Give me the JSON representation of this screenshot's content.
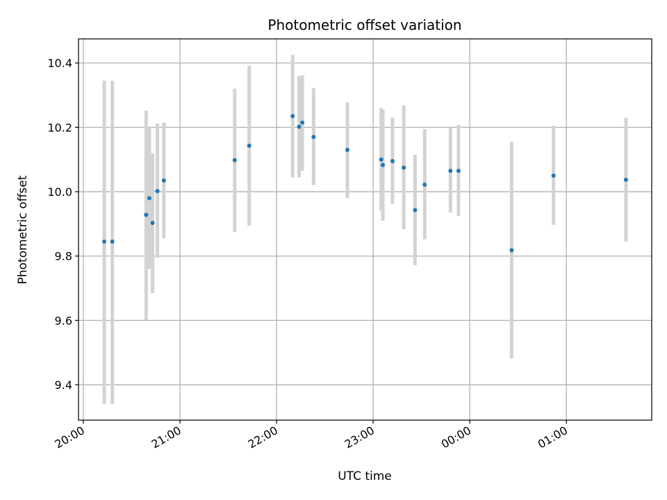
{
  "chart_data": {
    "type": "scatter",
    "title": "Photometric offset variation",
    "xlabel": "UTC time",
    "ylabel": "Photometric offset",
    "xlim": [
      "19:57",
      "01:53"
    ],
    "ylim": [
      9.29,
      10.475
    ],
    "x_ticks": [
      "20:00",
      "21:00",
      "22:00",
      "23:00",
      "00:00",
      "01:00"
    ],
    "y_ticks": [
      9.4,
      9.6,
      9.8,
      10.0,
      10.2,
      10.4
    ],
    "grid": true,
    "colors": {
      "point": "#1f77b4",
      "errorbar": "#d3d3d3",
      "grid": "#b0b0b0"
    },
    "points": [
      {
        "x": "20:13",
        "y": 9.845,
        "low": 9.34,
        "high": 10.345
      },
      {
        "x": "20:18",
        "y": 9.845,
        "low": 9.34,
        "high": 10.345
      },
      {
        "x": "20:39",
        "y": 9.928,
        "low": 9.6,
        "high": 10.252
      },
      {
        "x": "20:41",
        "y": 9.98,
        "low": 9.76,
        "high": 10.2
      },
      {
        "x": "20:43",
        "y": 9.903,
        "low": 9.685,
        "high": 10.12
      },
      {
        "x": "20:46",
        "y": 10.002,
        "low": 9.795,
        "high": 10.212
      },
      {
        "x": "20:50",
        "y": 10.035,
        "low": 9.855,
        "high": 10.215
      },
      {
        "x": "21:34",
        "y": 10.098,
        "low": 9.875,
        "high": 10.32
      },
      {
        "x": "21:43",
        "y": 10.143,
        "low": 9.895,
        "high": 10.392
      },
      {
        "x": "22:10",
        "y": 10.235,
        "low": 10.045,
        "high": 10.425
      },
      {
        "x": "22:14",
        "y": 10.202,
        "low": 10.045,
        "high": 10.36
      },
      {
        "x": "22:16",
        "y": 10.215,
        "low": 10.065,
        "high": 10.362
      },
      {
        "x": "22:23",
        "y": 10.17,
        "low": 10.02,
        "high": 10.322
      },
      {
        "x": "22:44",
        "y": 10.13,
        "low": 9.98,
        "high": 10.278
      },
      {
        "x": "23:05",
        "y": 10.1,
        "low": 9.94,
        "high": 10.26
      },
      {
        "x": "23:06",
        "y": 10.083,
        "low": 9.91,
        "high": 10.255
      },
      {
        "x": "23:12",
        "y": 10.095,
        "low": 9.962,
        "high": 10.23
      },
      {
        "x": "23:19",
        "y": 10.075,
        "low": 9.883,
        "high": 10.268
      },
      {
        "x": "23:26",
        "y": 9.943,
        "low": 9.772,
        "high": 10.115
      },
      {
        "x": "23:32",
        "y": 10.022,
        "low": 9.852,
        "high": 10.195
      },
      {
        "x": "23:48",
        "y": 10.065,
        "low": 9.935,
        "high": 10.198
      },
      {
        "x": "23:53",
        "y": 10.065,
        "low": 9.925,
        "high": 10.208
      },
      {
        "x": "00:26",
        "y": 9.818,
        "low": 9.482,
        "high": 10.155
      },
      {
        "x": "00:52",
        "y": 10.05,
        "low": 9.897,
        "high": 10.205
      },
      {
        "x": "01:37",
        "y": 10.037,
        "low": 9.845,
        "high": 10.23
      }
    ]
  }
}
